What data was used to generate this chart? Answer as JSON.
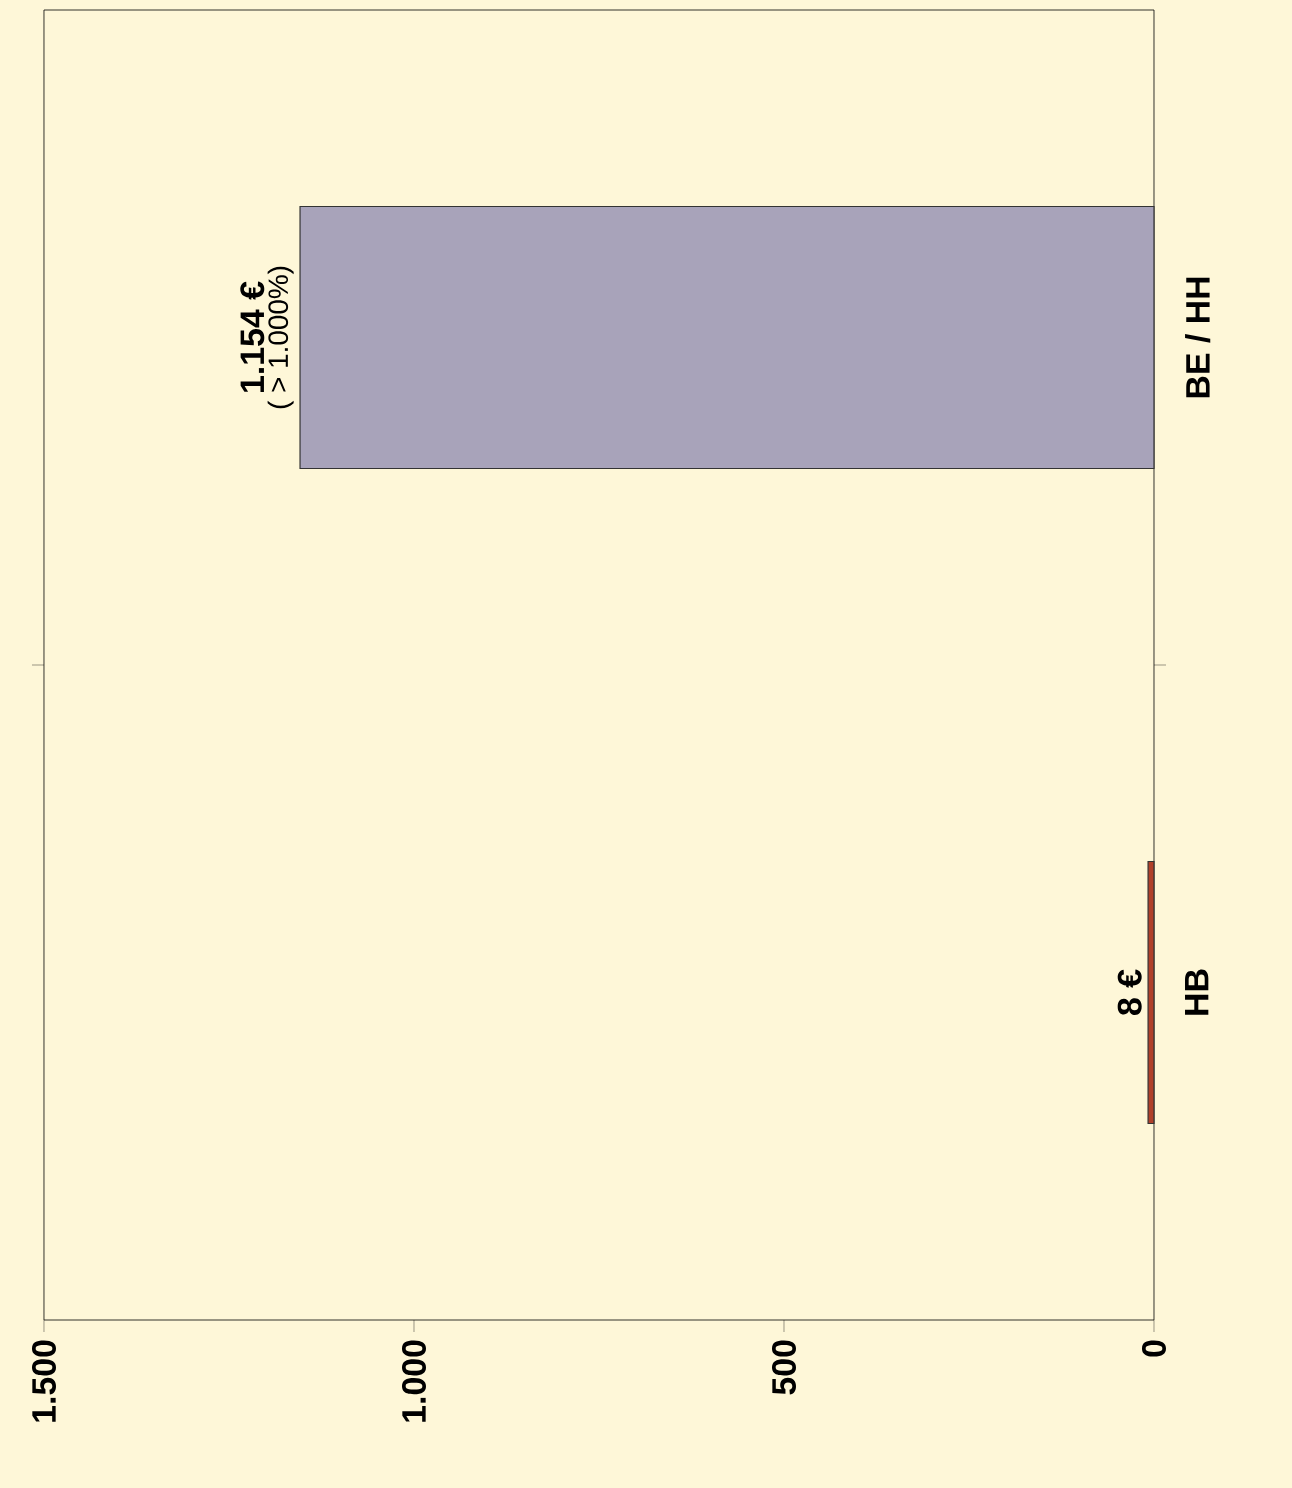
{
  "chart_data": {
    "type": "bar",
    "orientation": "horizontal",
    "categories": [
      "BE / HH",
      "HB"
    ],
    "values": [
      1154,
      8
    ],
    "colors": [
      "#a8a3ba",
      "#b0402a"
    ],
    "value_labels": [
      "**1.154 €**",
      "**8 €**"
    ],
    "annotations": [
      {
        "text": "( > 1.000%)",
        "x": 1154,
        "y": "BE / HH"
      }
    ],
    "xlim": [
      1500,
      0
    ],
    "xticks": [
      {
        "value": 1500,
        "label": "1.500"
      },
      {
        "value": 1000,
        "label": "1.000"
      },
      {
        "value": 500,
        "label": "500"
      },
      {
        "value": 0,
        "label": "0"
      }
    ],
    "grid": false
  }
}
